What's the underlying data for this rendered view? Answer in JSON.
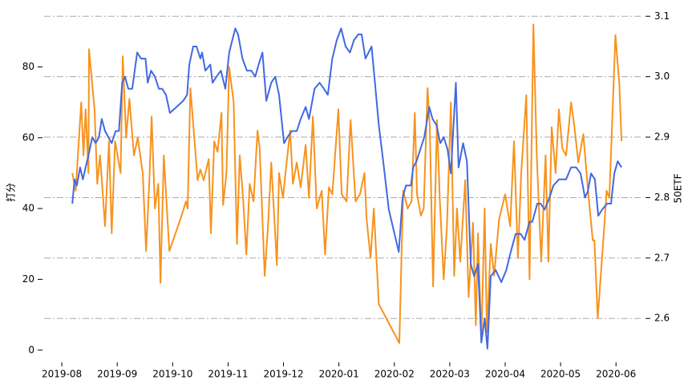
{
  "chart_data": {
    "type": "line",
    "y_label": "打分",
    "y2_label": "50ETF",
    "xlim": [
      -0.32,
      10.46
    ],
    "xticks": [
      {
        "value": 0,
        "label": "2019-08"
      },
      {
        "value": 1,
        "label": "2019-09"
      },
      {
        "value": 2,
        "label": "2019-10"
      },
      {
        "value": 3,
        "label": "2019-11"
      },
      {
        "value": 4,
        "label": "2019-12"
      },
      {
        "value": 5,
        "label": "2020-01"
      },
      {
        "value": 6,
        "label": "2020-02"
      },
      {
        "value": 7,
        "label": "2020-03"
      },
      {
        "value": 8,
        "label": "2020-04"
      },
      {
        "value": 9,
        "label": "2020-05"
      },
      {
        "value": 10,
        "label": "2020-06"
      }
    ],
    "ylim": [
      -3,
      95.5
    ],
    "yticks": [
      0,
      20,
      40,
      60,
      80
    ],
    "y2lim": [
      2.53,
      3.107
    ],
    "y2ticks": [
      2.6,
      2.7,
      2.8,
      2.9,
      {
        "value": 3,
        "label": "3.0"
      },
      3.1
    ],
    "grid": true,
    "series": [
      {
        "color": "#f7931e",
        "axis": "y",
        "x": [
          0.19,
          0.25,
          0.35,
          0.39,
          0.43,
          0.48,
          0.49,
          0.59,
          0.64,
          0.69,
          0.78,
          0.85,
          0.9,
          0.96,
          1.06,
          1.1,
          1.16,
          1.22,
          1.3,
          1.37,
          1.46,
          1.52,
          1.58,
          1.62,
          1.68,
          1.74,
          1.78,
          1.84,
          1.94,
          2.14,
          2.24,
          2.27,
          2.32,
          2.39,
          2.45,
          2.5,
          2.56,
          2.65,
          2.69,
          2.75,
          2.81,
          2.88,
          2.91,
          2.97,
          3.02,
          3.1,
          3.16,
          3.21,
          3.27,
          3.33,
          3.39,
          3.46,
          3.53,
          3.57,
          3.66,
          3.72,
          3.78,
          3.88,
          3.92,
          3.99,
          4.05,
          4.12,
          4.17,
          4.24,
          4.31,
          4.4,
          4.46,
          4.53,
          4.6,
          4.69,
          4.75,
          4.82,
          4.88,
          4.99,
          5.05,
          5.14,
          5.21,
          5.3,
          5.38,
          5.46,
          5.5,
          5.57,
          5.63,
          5.72,
          6.09,
          6.16,
          6.24,
          6.31,
          6.37,
          6.41,
          6.48,
          6.53,
          6.6,
          6.64,
          6.7,
          6.77,
          6.82,
          6.89,
          6.95,
          7.02,
          7.08,
          7.13,
          7.19,
          7.28,
          7.34,
          7.42,
          7.47,
          7.51,
          7.57,
          7.63,
          7.67,
          7.74,
          7.8,
          7.89,
          8.0,
          8.09,
          8.16,
          8.23,
          8.29,
          8.38,
          8.44,
          8.51,
          8.57,
          8.65,
          8.73,
          8.78,
          8.84,
          8.91,
          8.97,
          9.03,
          9.1,
          9.19,
          9.25,
          9.32,
          9.41,
          9.49,
          9.58,
          9.61,
          9.67,
          9.78,
          9.83,
          9.88,
          9.99,
          10.06,
          10.1
        ],
        "values": [
          50,
          45,
          70,
          55,
          68,
          50,
          85,
          68,
          47,
          55,
          35,
          59,
          33,
          59,
          50,
          83,
          60,
          71,
          55,
          60,
          50,
          28,
          48,
          66,
          40,
          47,
          19,
          55,
          28,
          37,
          42,
          40,
          74,
          60,
          48,
          51,
          48,
          54,
          33,
          59,
          56,
          67,
          41,
          50,
          80,
          70,
          30,
          55,
          43,
          27,
          47,
          42,
          62,
          57,
          21,
          35,
          53,
          24,
          50,
          43,
          52,
          62,
          47,
          53,
          46,
          58,
          43,
          66,
          40,
          45,
          27,
          46,
          44,
          68,
          44,
          42,
          65,
          42,
          44,
          50,
          37,
          26,
          40,
          13,
          2,
          45,
          40,
          42,
          67,
          44,
          38,
          40,
          74,
          63,
          18,
          65,
          43,
          20,
          35,
          70,
          21,
          40,
          25,
          48,
          15,
          36,
          7,
          33,
          3,
          40,
          5,
          30,
          21,
          37,
          44,
          35,
          59,
          26,
          50,
          72,
          20,
          92,
          55,
          25,
          55,
          25,
          63,
          50,
          68,
          57,
          55,
          70,
          63,
          53,
          61,
          46,
          31,
          31,
          9,
          33,
          45,
          43,
          89,
          75,
          59
        ]
      },
      {
        "color": "#4169e1",
        "axis": "y2",
        "x": [
          0.19,
          0.23,
          0.27,
          0.33,
          0.38,
          0.43,
          0.48,
          0.55,
          0.61,
          0.67,
          0.72,
          0.78,
          0.84,
          0.9,
          0.97,
          1.03,
          1.09,
          1.14,
          1.2,
          1.27,
          1.36,
          1.43,
          1.51,
          1.55,
          1.61,
          1.68,
          1.75,
          1.81,
          1.88,
          1.95,
          2.07,
          2.19,
          2.26,
          2.3,
          2.37,
          2.43,
          2.5,
          2.53,
          2.59,
          2.68,
          2.72,
          2.79,
          2.87,
          2.95,
          3.02,
          3.13,
          3.18,
          3.26,
          3.34,
          3.42,
          3.49,
          3.55,
          3.62,
          3.69,
          3.78,
          3.85,
          3.92,
          4.01,
          4.07,
          4.15,
          4.24,
          4.31,
          4.4,
          4.46,
          4.56,
          4.65,
          4.73,
          4.8,
          4.88,
          4.96,
          5.04,
          5.12,
          5.2,
          5.27,
          5.35,
          5.41,
          5.48,
          5.59,
          5.66,
          5.72,
          5.8,
          5.9,
          6.08,
          6.15,
          6.21,
          6.3,
          6.34,
          6.4,
          6.47,
          6.54,
          6.63,
          6.69,
          6.76,
          6.83,
          6.89,
          6.96,
          7.02,
          7.11,
          7.16,
          7.24,
          7.31,
          7.38,
          7.44,
          7.51,
          7.57,
          7.63,
          7.68,
          7.74,
          7.83,
          7.93,
          8.02,
          8.1,
          8.19,
          8.28,
          8.35,
          8.44,
          8.49,
          8.58,
          8.64,
          8.71,
          8.8,
          8.87,
          8.97,
          9.1,
          9.19,
          9.28,
          9.36,
          9.44,
          9.49,
          9.55,
          9.62,
          9.68,
          9.75,
          9.84,
          9.91,
          9.97,
          10.03,
          10.1
        ],
        "values": [
          2.79,
          2.83,
          2.82,
          2.85,
          2.83,
          2.85,
          2.87,
          2.9,
          2.89,
          2.9,
          2.93,
          2.91,
          2.9,
          2.89,
          2.91,
          2.91,
          2.99,
          3.0,
          2.98,
          2.98,
          3.04,
          3.03,
          3.03,
          2.99,
          3.01,
          3.0,
          2.98,
          2.98,
          2.97,
          2.94,
          2.95,
          2.96,
          2.97,
          3.02,
          3.05,
          3.05,
          3.03,
          3.04,
          3.01,
          3.02,
          2.99,
          3.0,
          3.01,
          2.98,
          3.04,
          3.08,
          3.07,
          3.03,
          3.01,
          3.01,
          3.0,
          3.02,
          3.04,
          2.96,
          2.99,
          3.0,
          2.97,
          2.89,
          2.9,
          2.91,
          2.91,
          2.93,
          2.95,
          2.93,
          2.98,
          2.99,
          2.98,
          2.97,
          3.03,
          3.06,
          3.08,
          3.05,
          3.04,
          3.06,
          3.07,
          3.07,
          3.03,
          3.05,
          2.98,
          2.92,
          2.86,
          2.78,
          2.71,
          2.8,
          2.82,
          2.82,
          2.85,
          2.86,
          2.88,
          2.9,
          2.95,
          2.93,
          2.92,
          2.89,
          2.9,
          2.88,
          2.84,
          2.99,
          2.85,
          2.89,
          2.86,
          2.69,
          2.67,
          2.69,
          2.56,
          2.6,
          2.55,
          2.67,
          2.68,
          2.66,
          2.68,
          2.71,
          2.74,
          2.74,
          2.73,
          2.76,
          2.76,
          2.79,
          2.79,
          2.78,
          2.8,
          2.82,
          2.83,
          2.83,
          2.85,
          2.85,
          2.84,
          2.8,
          2.81,
          2.84,
          2.83,
          2.77,
          2.78,
          2.79,
          2.79,
          2.84,
          2.86,
          2.85
        ]
      }
    ]
  }
}
